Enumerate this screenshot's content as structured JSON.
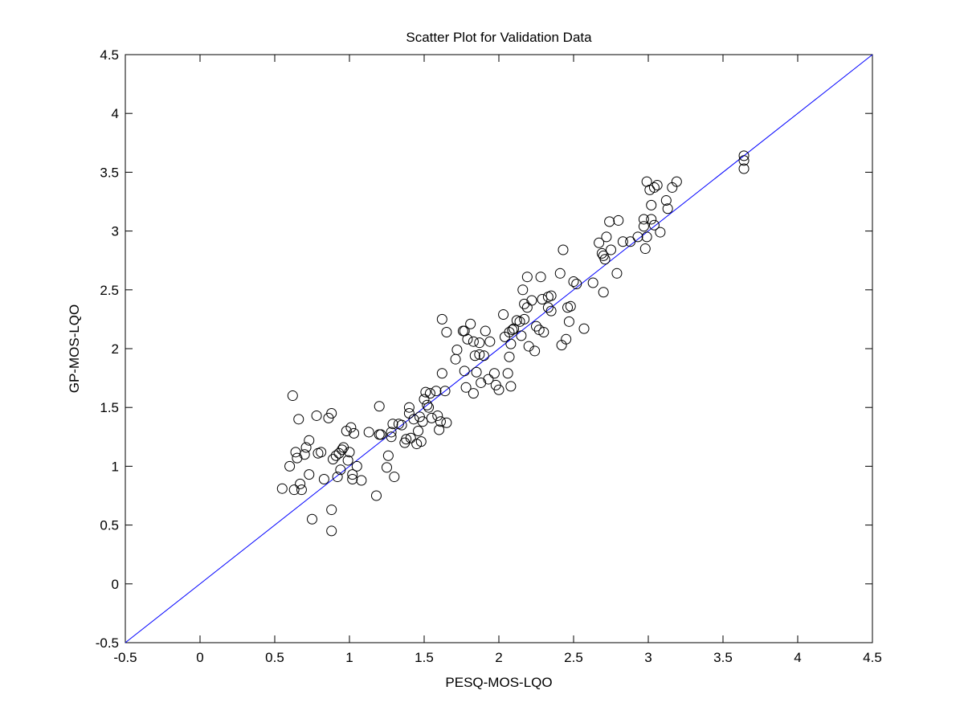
{
  "chart_data": {
    "type": "scatter",
    "title": "Scatter Plot for Validation Data",
    "xlabel": "PESQ-MOS-LQO",
    "ylabel": "GP-MOS-LQO",
    "xlim": [
      -0.5,
      4.5
    ],
    "ylim": [
      -0.5,
      4.5
    ],
    "xticks": [
      -0.5,
      0,
      0.5,
      1,
      1.5,
      2,
      2.5,
      3,
      3.5,
      4,
      4.5
    ],
    "yticks": [
      -0.5,
      0,
      0.5,
      1,
      1.5,
      2,
      2.5,
      3,
      3.5,
      4,
      4.5
    ],
    "grid": false,
    "line_color": "#0000ff",
    "marker_color": "#000000",
    "reference_line": {
      "x": [
        -0.5,
        4.5
      ],
      "y": [
        -0.5,
        4.5
      ]
    },
    "points": [
      [
        0.55,
        0.81
      ],
      [
        0.6,
        1.0
      ],
      [
        0.62,
        1.6
      ],
      [
        0.63,
        0.8
      ],
      [
        0.64,
        1.12
      ],
      [
        0.65,
        1.07
      ],
      [
        0.66,
        1.4
      ],
      [
        0.67,
        0.85
      ],
      [
        0.68,
        0.8
      ],
      [
        0.7,
        1.1
      ],
      [
        0.71,
        1.16
      ],
      [
        0.73,
        1.22
      ],
      [
        0.73,
        0.93
      ],
      [
        0.75,
        0.55
      ],
      [
        0.78,
        1.43
      ],
      [
        0.79,
        1.11
      ],
      [
        0.81,
        1.12
      ],
      [
        0.83,
        0.89
      ],
      [
        0.86,
        1.41
      ],
      [
        0.88,
        1.45
      ],
      [
        0.88,
        0.63
      ],
      [
        0.88,
        0.45
      ],
      [
        0.89,
        1.06
      ],
      [
        0.91,
        1.09
      ],
      [
        0.92,
        0.91
      ],
      [
        0.93,
        1.11
      ],
      [
        0.94,
        0.97
      ],
      [
        0.95,
        1.14
      ],
      [
        0.96,
        1.16
      ],
      [
        0.98,
        1.3
      ],
      [
        0.99,
        1.05
      ],
      [
        1.0,
        1.12
      ],
      [
        1.01,
        1.33
      ],
      [
        1.02,
        0.93
      ],
      [
        1.02,
        0.89
      ],
      [
        1.03,
        1.28
      ],
      [
        1.05,
        1.0
      ],
      [
        1.08,
        0.88
      ],
      [
        1.13,
        1.29
      ],
      [
        1.18,
        0.75
      ],
      [
        1.2,
        1.51
      ],
      [
        1.2,
        1.27
      ],
      [
        1.21,
        1.27
      ],
      [
        1.25,
        0.99
      ],
      [
        1.26,
        1.09
      ],
      [
        1.28,
        1.29
      ],
      [
        1.28,
        1.25
      ],
      [
        1.29,
        1.36
      ],
      [
        1.3,
        0.91
      ],
      [
        1.33,
        1.36
      ],
      [
        1.35,
        1.35
      ],
      [
        1.37,
        1.2
      ],
      [
        1.38,
        1.23
      ],
      [
        1.4,
        1.45
      ],
      [
        1.4,
        1.5
      ],
      [
        1.41,
        1.24
      ],
      [
        1.43,
        1.4
      ],
      [
        1.45,
        1.19
      ],
      [
        1.46,
        1.3
      ],
      [
        1.47,
        1.42
      ],
      [
        1.48,
        1.21
      ],
      [
        1.49,
        1.38
      ],
      [
        1.5,
        1.57
      ],
      [
        1.51,
        1.63
      ],
      [
        1.52,
        1.52
      ],
      [
        1.53,
        1.5
      ],
      [
        1.54,
        1.62
      ],
      [
        1.55,
        1.41
      ],
      [
        1.58,
        1.64
      ],
      [
        1.59,
        1.43
      ],
      [
        1.6,
        1.31
      ],
      [
        1.61,
        1.38
      ],
      [
        1.62,
        2.25
      ],
      [
        1.62,
        1.79
      ],
      [
        1.64,
        1.64
      ],
      [
        1.65,
        2.14
      ],
      [
        1.65,
        1.37
      ],
      [
        1.71,
        1.91
      ],
      [
        1.72,
        1.99
      ],
      [
        1.76,
        2.15
      ],
      [
        1.77,
        2.15
      ],
      [
        1.77,
        1.81
      ],
      [
        1.78,
        1.67
      ],
      [
        1.79,
        2.08
      ],
      [
        1.81,
        2.21
      ],
      [
        1.83,
        2.06
      ],
      [
        1.83,
        1.62
      ],
      [
        1.84,
        1.94
      ],
      [
        1.85,
        1.8
      ],
      [
        1.87,
        2.05
      ],
      [
        1.87,
        1.95
      ],
      [
        1.88,
        1.71
      ],
      [
        1.9,
        1.94
      ],
      [
        1.91,
        2.15
      ],
      [
        1.93,
        1.74
      ],
      [
        1.94,
        2.06
      ],
      [
        1.97,
        1.79
      ],
      [
        1.98,
        1.69
      ],
      [
        2.0,
        1.65
      ],
      [
        2.03,
        2.29
      ],
      [
        2.04,
        2.1
      ],
      [
        2.06,
        1.79
      ],
      [
        2.07,
        2.14
      ],
      [
        2.07,
        1.93
      ],
      [
        2.08,
        2.04
      ],
      [
        2.08,
        1.68
      ],
      [
        2.09,
        2.16
      ],
      [
        2.1,
        2.17
      ],
      [
        2.12,
        2.24
      ],
      [
        2.14,
        2.23
      ],
      [
        2.15,
        2.11
      ],
      [
        2.16,
        2.5
      ],
      [
        2.17,
        2.38
      ],
      [
        2.17,
        2.25
      ],
      [
        2.19,
        2.61
      ],
      [
        2.19,
        2.35
      ],
      [
        2.2,
        2.02
      ],
      [
        2.22,
        2.41
      ],
      [
        2.24,
        1.98
      ],
      [
        2.25,
        2.19
      ],
      [
        2.27,
        2.16
      ],
      [
        2.28,
        2.61
      ],
      [
        2.29,
        2.42
      ],
      [
        2.3,
        2.14
      ],
      [
        2.33,
        2.44
      ],
      [
        2.33,
        2.35
      ],
      [
        2.35,
        2.45
      ],
      [
        2.35,
        2.32
      ],
      [
        2.41,
        2.64
      ],
      [
        2.42,
        2.03
      ],
      [
        2.43,
        2.84
      ],
      [
        2.45,
        2.08
      ],
      [
        2.46,
        2.35
      ],
      [
        2.47,
        2.23
      ],
      [
        2.48,
        2.36
      ],
      [
        2.5,
        2.57
      ],
      [
        2.52,
        2.55
      ],
      [
        2.57,
        2.17
      ],
      [
        2.63,
        2.56
      ],
      [
        2.67,
        2.9
      ],
      [
        2.69,
        2.81
      ],
      [
        2.7,
        2.48
      ],
      [
        2.7,
        2.79
      ],
      [
        2.71,
        2.76
      ],
      [
        2.72,
        2.95
      ],
      [
        2.74,
        3.08
      ],
      [
        2.75,
        2.84
      ],
      [
        2.79,
        2.64
      ],
      [
        2.8,
        3.09
      ],
      [
        2.83,
        2.91
      ],
      [
        2.88,
        2.91
      ],
      [
        2.93,
        2.95
      ],
      [
        2.97,
        3.04
      ],
      [
        2.97,
        3.1
      ],
      [
        2.98,
        2.85
      ],
      [
        2.99,
        2.95
      ],
      [
        2.99,
        3.42
      ],
      [
        3.01,
        3.35
      ],
      [
        3.02,
        3.1
      ],
      [
        3.02,
        3.22
      ],
      [
        3.04,
        3.37
      ],
      [
        3.04,
        3.05
      ],
      [
        3.06,
        3.39
      ],
      [
        3.08,
        2.99
      ],
      [
        3.12,
        3.26
      ],
      [
        3.13,
        3.19
      ],
      [
        3.16,
        3.37
      ],
      [
        3.19,
        3.42
      ],
      [
        3.64,
        3.64
      ],
      [
        3.64,
        3.6
      ],
      [
        3.64,
        3.53
      ]
    ]
  }
}
